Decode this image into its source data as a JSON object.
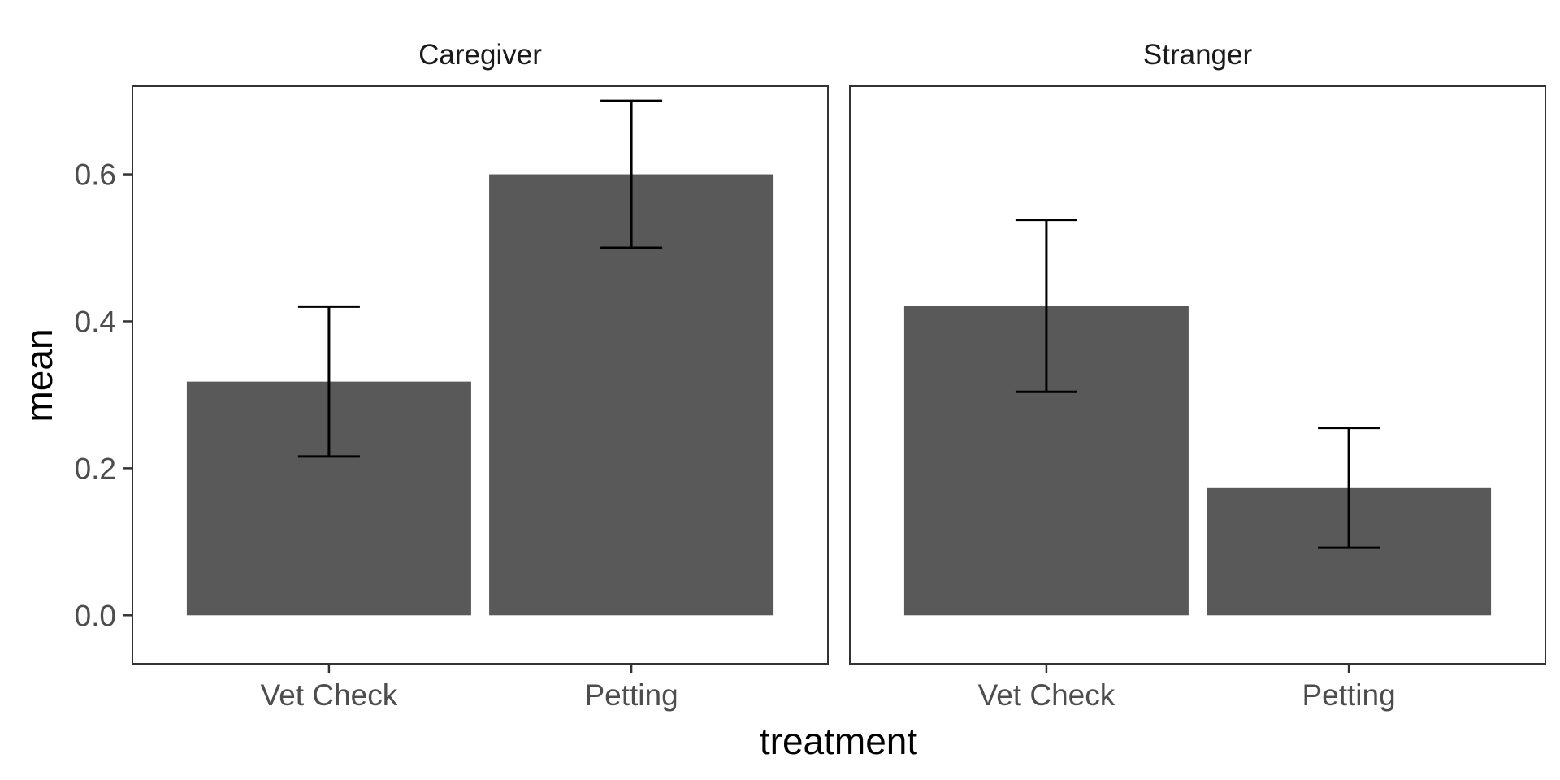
{
  "chart_data": {
    "type": "bar",
    "xlabel": "treatment",
    "ylabel": "mean",
    "ylim": [
      -0.066,
      0.72
    ],
    "yticks": [
      0.0,
      0.2,
      0.4,
      0.6
    ],
    "ytick_labels": [
      "0.0",
      "0.2",
      "0.4",
      "0.6"
    ],
    "grid": false,
    "bar_color": "#595959",
    "errorbar_color": "#000000",
    "panel_border_color": "#333333",
    "categories": [
      "Vet Check",
      "Petting"
    ],
    "facets": [
      {
        "name": "Caregiver",
        "values": [
          0.318,
          0.6
        ],
        "error_low": [
          0.216,
          0.5
        ],
        "error_high": [
          0.42,
          0.7
        ]
      },
      {
        "name": "Stranger",
        "values": [
          0.421,
          0.173
        ],
        "error_low": [
          0.304,
          0.092
        ],
        "error_high": [
          0.538,
          0.255
        ]
      }
    ]
  }
}
